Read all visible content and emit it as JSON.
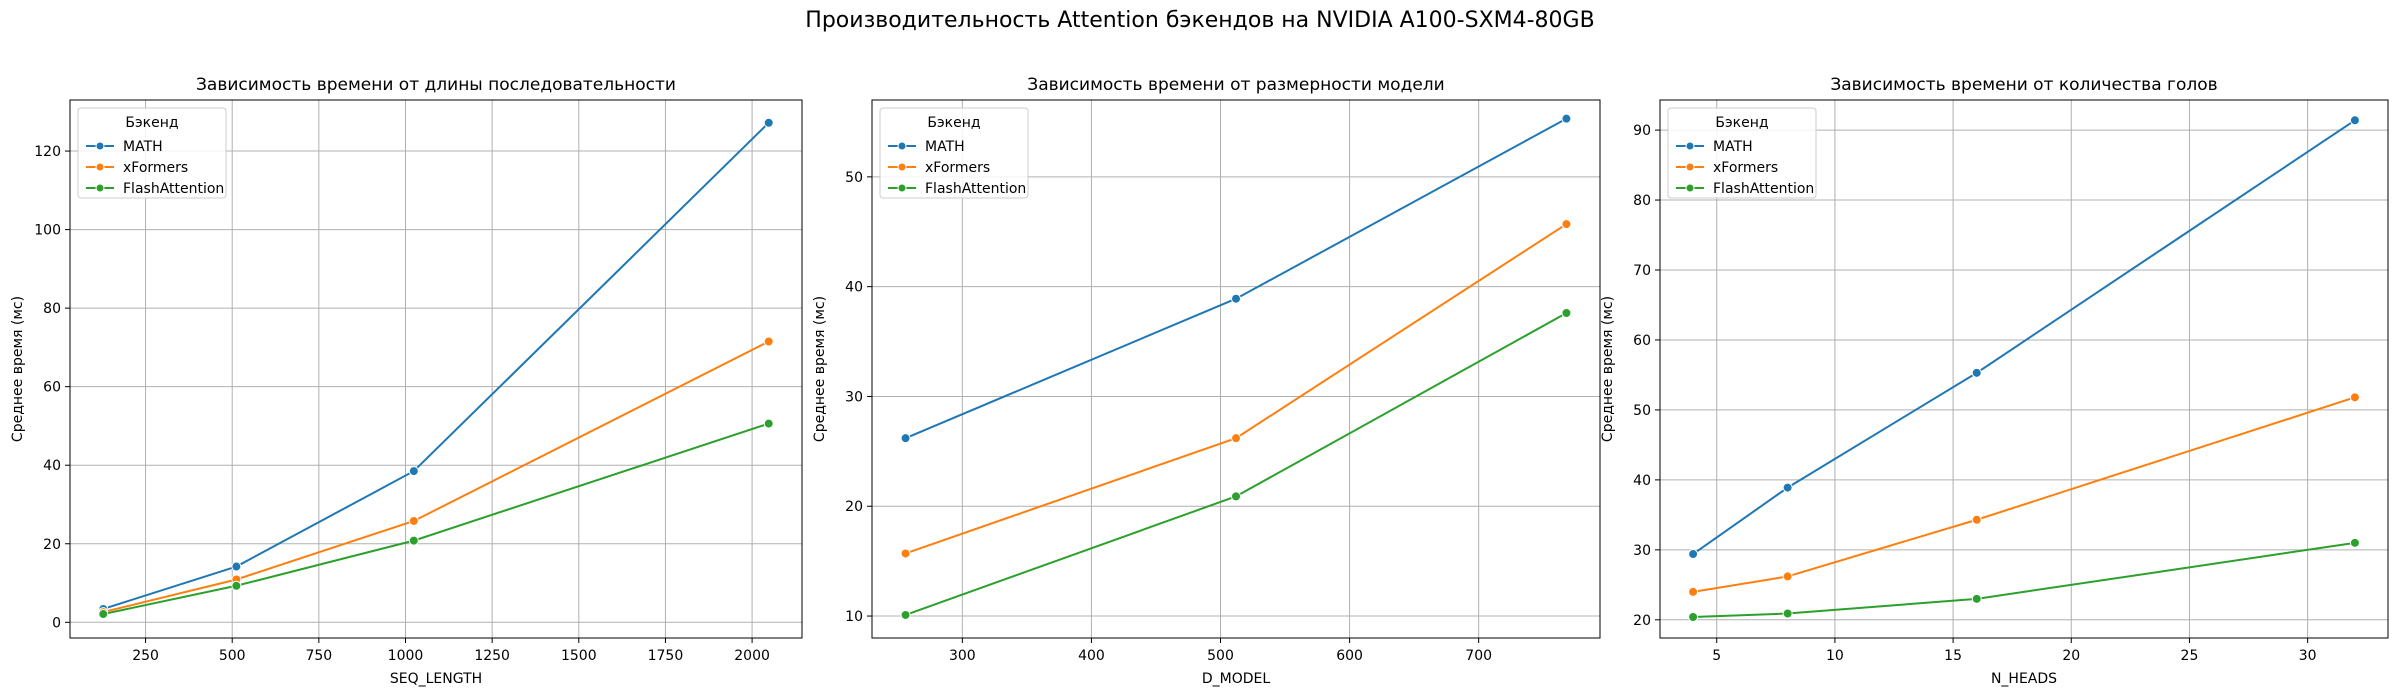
{
  "suptitle": "Производительность Attention бэкендов на NVIDIA A100-SXM4-80GB",
  "colors": {
    "MATH": "#1f77b4",
    "xFormers": "#ff7f0e",
    "FlashAttention": "#2ca02c",
    "grid": "#b0b0b0"
  },
  "chart_data": [
    {
      "type": "line",
      "title": "Зависимость времени от длины последовательности",
      "xlabel": "SEQ_LENGTH",
      "ylabel": "Среднее время (мс)",
      "x": [
        128,
        512,
        1024,
        2048
      ],
      "xlim": [
        32,
        2144
      ],
      "ylim": [
        -4,
        133
      ],
      "xticks": [
        250,
        500,
        750,
        1000,
        1250,
        1500,
        1750,
        2000
      ],
      "yticks": [
        0,
        20,
        40,
        60,
        80,
        100,
        120
      ],
      "grid": true,
      "legend": {
        "title": "Бэкенд",
        "placement": "upper left"
      },
      "series": [
        {
          "name": "MATH",
          "values": [
            3.4,
            14.2,
            38.5,
            127.2
          ]
        },
        {
          "name": "xFormers",
          "values": [
            2.6,
            10.9,
            25.8,
            71.5
          ]
        },
        {
          "name": "FlashAttention",
          "values": [
            2.1,
            9.3,
            20.8,
            50.6
          ]
        }
      ]
    },
    {
      "type": "line",
      "title": "Зависимость времени от размерности модели",
      "xlabel": "D_MODEL",
      "ylabel": "Среднее время (мс)",
      "x": [
        256,
        512,
        768
      ],
      "xlim": [
        230,
        794
      ],
      "ylim": [
        8,
        57
      ],
      "xticks": [
        300,
        400,
        500,
        600,
        700
      ],
      "yticks": [
        10,
        20,
        30,
        40,
        50
      ],
      "grid": true,
      "legend": {
        "title": "Бэкенд",
        "placement": "upper left"
      },
      "series": [
        {
          "name": "MATH",
          "values": [
            26.2,
            38.9,
            55.3
          ]
        },
        {
          "name": "xFormers",
          "values": [
            15.7,
            26.2,
            45.7
          ]
        },
        {
          "name": "FlashAttention",
          "values": [
            10.1,
            20.9,
            37.6
          ]
        }
      ]
    },
    {
      "type": "line",
      "title": "Зависимость времени от количества голов",
      "xlabel": "N_HEADS",
      "ylabel": "Среднее время (мс)",
      "x": [
        4,
        8,
        16,
        32
      ],
      "xlim": [
        2.6,
        33.4
      ],
      "ylim": [
        17.4,
        94.3
      ],
      "xticks": [
        5,
        10,
        15,
        20,
        25,
        30
      ],
      "yticks": [
        20,
        30,
        40,
        50,
        60,
        70,
        80,
        90
      ],
      "grid": true,
      "legend": {
        "title": "Бэкенд",
        "placement": "upper left"
      },
      "series": [
        {
          "name": "MATH",
          "values": [
            29.4,
            38.9,
            55.3,
            91.4
          ]
        },
        {
          "name": "xFormers",
          "values": [
            24.0,
            26.2,
            34.3,
            51.8
          ]
        },
        {
          "name": "FlashAttention",
          "values": [
            20.4,
            20.9,
            23.0,
            31.0
          ]
        }
      ]
    }
  ]
}
